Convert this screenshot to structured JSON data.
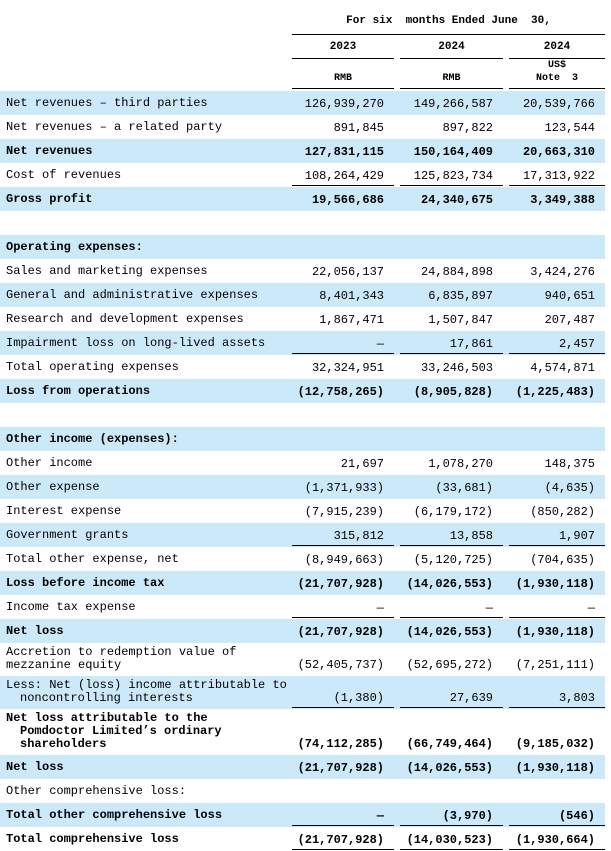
{
  "header": {
    "period": "For six  months Ended June  30,",
    "columns": [
      {
        "year": "2023",
        "currency": [
          "RMB"
        ]
      },
      {
        "year": "2024",
        "currency": [
          "RMB"
        ]
      },
      {
        "year": "2024",
        "currency": [
          "US$",
          "Note  3"
        ]
      }
    ]
  },
  "rows": [
    {
      "label": [
        "Net revenues  –  third parties"
      ],
      "values": [
        "126,939,270",
        "149,266,587",
        "20,539,766"
      ]
    },
    {
      "label": [
        "Net revenues  –  a related party"
      ],
      "values": [
        "891,845",
        "897,822",
        "123,544"
      ]
    },
    {
      "label": [
        "Net revenues"
      ],
      "values": [
        "127,831,115",
        "150,164,409",
        "20,663,310"
      ]
    },
    {
      "label": [
        "Cost of revenues"
      ],
      "values": [
        "108,264,429",
        "125,823,734",
        "17,313,922"
      ]
    },
    {
      "label": [
        "Gross profit"
      ],
      "values": [
        "19,566,686",
        "24,340,675",
        "3,349,388"
      ]
    },
    {
      "label": [],
      "values": []
    },
    {
      "label": [
        "Operating expenses:"
      ],
      "values": []
    },
    {
      "label": [
        "Sales and marketing expenses"
      ],
      "values": [
        "22,056,137",
        "24,884,898",
        "3,424,276"
      ]
    },
    {
      "label": [
        "General and administrative expenses"
      ],
      "values": [
        "8,401,343",
        "6,835,897",
        "940,651"
      ]
    },
    {
      "label": [
        "Research and development expenses"
      ],
      "values": [
        "1,867,471",
        "1,507,847",
        "207,487"
      ]
    },
    {
      "label": [
        "Impairment loss on long-lived assets"
      ],
      "values": [
        "—",
        "17,861",
        "2,457"
      ]
    },
    {
      "label": [
        "Total operating expenses"
      ],
      "values": [
        "32,324,951",
        "33,246,503",
        "4,574,871"
      ]
    },
    {
      "label": [
        "Loss from operations"
      ],
      "values": [
        "(12,758,265)",
        "(8,905,828)",
        "(1,225,483)"
      ]
    },
    {
      "label": [],
      "values": []
    },
    {
      "label": [
        "Other income (expenses):"
      ],
      "values": []
    },
    {
      "label": [
        "Other income"
      ],
      "values": [
        "21,697",
        "1,078,270",
        "148,375"
      ]
    },
    {
      "label": [
        "Other expense"
      ],
      "values": [
        "(1,371,933)",
        "(33,681)",
        "(4,635)"
      ]
    },
    {
      "label": [
        "Interest expense"
      ],
      "values": [
        "(7,915,239)",
        "(6,179,172)",
        "(850,282)"
      ]
    },
    {
      "label": [
        "Government grants"
      ],
      "values": [
        "315,812",
        "13,858",
        "1,907"
      ]
    },
    {
      "label": [
        "Total other expense, net"
      ],
      "values": [
        "(8,949,663)",
        "(5,120,725)",
        "(704,635)"
      ]
    },
    {
      "label": [
        "Loss before income tax"
      ],
      "values": [
        "(21,707,928)",
        "(14,026,553)",
        "(1,930,118)"
      ]
    },
    {
      "label": [
        "Income tax expense"
      ],
      "values": [
        "—",
        "—",
        "—"
      ]
    },
    {
      "label": [
        "Net loss"
      ],
      "values": [
        "(21,707,928)",
        "(14,026,553)",
        "(1,930,118)"
      ]
    },
    {
      "label": [
        "Accretion to redemption value of",
        "mezzanine equity"
      ],
      "values": [
        "(52,405,737)",
        "(52,695,272)",
        "(7,251,111)"
      ]
    },
    {
      "label": [
        "Less: Net (loss) income attributable to",
        "noncontrolling interests"
      ],
      "values": [
        "(1,380)",
        "27,639",
        "3,803"
      ]
    },
    {
      "label": [
        "Net loss attributable to the",
        "Pomdoctor Limited’s ordinary",
        "shareholders"
      ],
      "values": [
        "(74,112,285)",
        "(66,749,464)",
        "(9,185,032)"
      ]
    },
    {
      "label": [
        "Net loss"
      ],
      "values": [
        "(21,707,928)",
        "(14,026,553)",
        "(1,930,118)"
      ]
    },
    {
      "label": [
        "Other comprehensive loss:"
      ],
      "values": []
    },
    {
      "label": [
        "Total other comprehensive loss"
      ],
      "values": [
        "—",
        "(3,970)",
        "(546)"
      ]
    },
    {
      "label": [
        "Total comprehensive loss"
      ],
      "values": [
        "(21,707,928)",
        "(14,030,523)",
        "(1,930,664)"
      ]
    }
  ]
}
